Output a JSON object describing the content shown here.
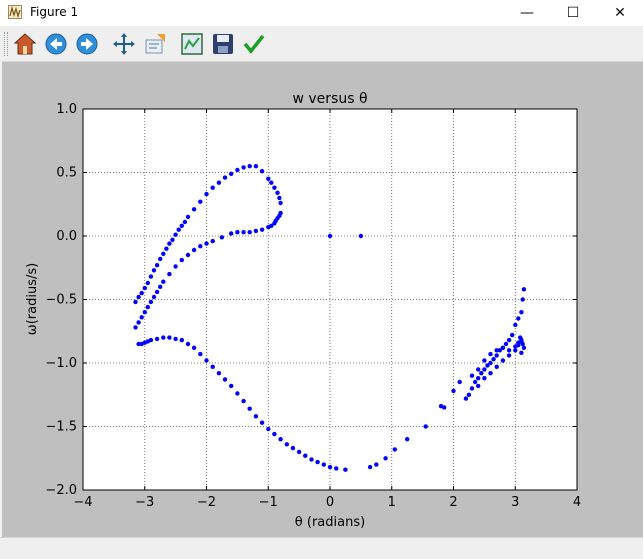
{
  "window": {
    "title": "Figure 1",
    "minimize_glyph": "—",
    "maximize_glyph": "☐",
    "close_glyph": "✕"
  },
  "toolbar": {
    "tools": [
      {
        "name": "home-icon"
      },
      {
        "name": "back-icon"
      },
      {
        "name": "forward-icon"
      },
      {
        "name": "pan-icon"
      },
      {
        "name": "zoom-icon"
      },
      {
        "name": "subplots-icon"
      },
      {
        "name": "save-icon"
      },
      {
        "name": "edit-axis-icon"
      }
    ]
  },
  "statusbar": {
    "text": ""
  },
  "chart_data": {
    "type": "scatter",
    "title": "w versus θ",
    "xlabel": "θ (radians)",
    "ylabel": "ω(radius/s)",
    "xlim": [
      -4,
      4
    ],
    "ylim": [
      -2,
      1
    ],
    "xticks": [
      "−4",
      "−3",
      "−2",
      "−1",
      "0",
      "1",
      "2",
      "3",
      "4"
    ],
    "yticks": [
      "1.0",
      "0.5",
      "0.0",
      "−0.5",
      "−1.0",
      "−1.5",
      "−2.0"
    ],
    "grid": true,
    "marker_color": "#0000ff",
    "series": [
      {
        "x": [
          0.0,
          0.5
        ],
        "y": [
          0.0,
          0.0
        ]
      },
      {
        "x": [
          -3.1,
          -3.05,
          -3.0,
          -2.95,
          -2.9,
          -2.8,
          -2.7,
          -2.6,
          -2.5,
          -2.4,
          -2.3,
          -2.2,
          -2.1,
          -2.0,
          -1.9,
          -1.8,
          -1.7,
          -1.6,
          -1.5,
          -1.4,
          -1.3,
          -1.2,
          -1.1,
          -1.0,
          -0.9,
          -0.8,
          -0.7,
          -0.6,
          -0.5,
          -0.4,
          -0.3,
          -0.2,
          -0.1,
          0.0,
          0.1,
          0.25,
          0.65,
          0.75,
          0.9,
          1.05,
          1.25,
          1.55,
          1.85
        ],
        "y": [
          -0.85,
          -0.85,
          -0.84,
          -0.83,
          -0.82,
          -0.81,
          -0.8,
          -0.8,
          -0.81,
          -0.82,
          -0.85,
          -0.88,
          -0.93,
          -0.98,
          -1.03,
          -1.08,
          -1.13,
          -1.18,
          -1.24,
          -1.3,
          -1.36,
          -1.42,
          -1.47,
          -1.52,
          -1.56,
          -1.6,
          -1.64,
          -1.67,
          -1.7,
          -1.73,
          -1.76,
          -1.78,
          -1.8,
          -1.82,
          -1.83,
          -1.84,
          -1.82,
          -1.8,
          -1.75,
          -1.68,
          -1.6,
          -1.5,
          -1.35
        ]
      },
      {
        "x": [
          -3.15,
          -3.1,
          -3.05,
          -3.0,
          -2.95,
          -2.9,
          -2.85,
          -2.8,
          -2.75,
          -2.7,
          -2.6,
          -2.5,
          -2.4,
          -2.3,
          -2.2,
          -2.1,
          -2.0,
          -1.9,
          -1.75,
          -1.6,
          -1.5,
          -1.4,
          -1.3,
          -1.2,
          -1.1,
          -1.0,
          -0.95,
          -0.9,
          -0.88,
          -0.85,
          -0.82,
          -0.8
        ],
        "y": [
          -0.72,
          -0.68,
          -0.64,
          -0.6,
          -0.56,
          -0.52,
          -0.48,
          -0.44,
          -0.4,
          -0.36,
          -0.3,
          -0.24,
          -0.19,
          -0.15,
          -0.11,
          -0.08,
          -0.06,
          -0.04,
          -0.01,
          0.02,
          0.03,
          0.03,
          0.03,
          0.04,
          0.05,
          0.07,
          0.08,
          0.1,
          0.12,
          0.14,
          0.16,
          0.18
        ]
      },
      {
        "x": [
          -3.15,
          -3.1,
          -3.05,
          -3.0,
          -2.95,
          -2.9,
          -2.85,
          -2.8,
          -2.75,
          -2.7,
          -2.65,
          -2.6,
          -2.55,
          -2.5,
          -2.45,
          -2.4,
          -2.35,
          -2.3,
          -2.2,
          -2.1,
          -2.0,
          -1.9,
          -1.8,
          -1.7,
          -1.6,
          -1.5,
          -1.4,
          -1.3,
          -1.2,
          -1.1,
          -1.0,
          -0.95,
          -0.9,
          -0.85,
          -0.82,
          -0.8
        ],
        "y": [
          -0.52,
          -0.48,
          -0.45,
          -0.41,
          -0.37,
          -0.32,
          -0.27,
          -0.23,
          -0.18,
          -0.14,
          -0.1,
          -0.06,
          -0.03,
          0.01,
          0.05,
          0.08,
          0.11,
          0.15,
          0.21,
          0.27,
          0.33,
          0.38,
          0.42,
          0.46,
          0.49,
          0.52,
          0.54,
          0.55,
          0.55,
          0.51,
          0.45,
          0.42,
          0.38,
          0.34,
          0.3,
          0.26
        ]
      },
      {
        "x": [
          1.8,
          2.0,
          2.1,
          2.2,
          2.25,
          2.3,
          2.35,
          2.4,
          2.45,
          2.5,
          2.55,
          2.6,
          2.65,
          2.7,
          2.75,
          2.8,
          2.85,
          2.9,
          2.95,
          3.0,
          3.05,
          3.1,
          3.12,
          3.14
        ],
        "y": [
          -1.34,
          -1.22,
          -1.15,
          -1.28,
          -1.25,
          -1.2,
          -1.15,
          -1.12,
          -1.08,
          -1.05,
          -1.02,
          -1.0,
          -0.97,
          -0.94,
          -0.9,
          -0.88,
          -0.85,
          -0.82,
          -0.78,
          -0.7,
          -0.65,
          -0.6,
          -0.5,
          -0.42
        ]
      },
      {
        "x": [
          2.3,
          2.4,
          2.5,
          2.6,
          2.7,
          2.8,
          2.9,
          3.0,
          3.05,
          3.1,
          3.12,
          3.14,
          3.1,
          3.08
        ],
        "y": [
          -1.1,
          -1.05,
          -0.98,
          -0.93,
          -0.9,
          -0.88,
          -0.9,
          -0.87,
          -0.84,
          -0.82,
          -0.85,
          -0.88,
          -0.92,
          -0.8
        ]
      },
      {
        "x": [
          2.4,
          2.5,
          2.6,
          2.7,
          2.8,
          2.9,
          3.0,
          3.05,
          3.1
        ],
        "y": [
          -1.18,
          -1.12,
          -1.08,
          -1.03,
          -0.98,
          -0.94,
          -0.9,
          -0.86,
          -0.83
        ]
      }
    ]
  }
}
